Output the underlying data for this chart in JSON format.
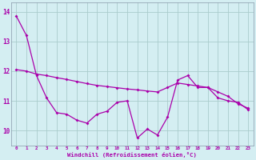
{
  "xlabel": "Windchill (Refroidissement éolien,°C)",
  "background_color": "#d4eef2",
  "grid_color": "#aacccc",
  "line_color": "#aa00aa",
  "spine_color": "#8899aa",
  "xlim": [
    -0.5,
    23.5
  ],
  "ylim": [
    9.5,
    14.3
  ],
  "yticks": [
    10,
    11,
    12,
    13,
    14
  ],
  "xticks": [
    0,
    1,
    2,
    3,
    4,
    5,
    6,
    7,
    8,
    9,
    10,
    11,
    12,
    13,
    14,
    15,
    16,
    17,
    18,
    19,
    20,
    21,
    22,
    23
  ],
  "series1_x": [
    0,
    1,
    2,
    3,
    4,
    5,
    6,
    7,
    8,
    9,
    10,
    11,
    12,
    13,
    14,
    15,
    16,
    17,
    18,
    19,
    20,
    21,
    22,
    23
  ],
  "series1_y": [
    13.85,
    13.2,
    11.85,
    11.1,
    10.6,
    10.55,
    10.35,
    10.25,
    10.55,
    10.65,
    10.95,
    11.0,
    9.75,
    10.05,
    9.85,
    10.45,
    11.7,
    11.85,
    11.45,
    11.45,
    11.1,
    11.0,
    10.95,
    10.7
  ],
  "series2_x": [
    0,
    1,
    2,
    3,
    4,
    5,
    6,
    7,
    8,
    9,
    10,
    11,
    12,
    13,
    14,
    15,
    16,
    17,
    18,
    19,
    20,
    21,
    22,
    23
  ],
  "series2_y": [
    12.05,
    12.0,
    11.9,
    11.85,
    11.78,
    11.72,
    11.65,
    11.58,
    11.52,
    11.48,
    11.44,
    11.4,
    11.37,
    11.33,
    11.3,
    11.45,
    11.6,
    11.55,
    11.5,
    11.45,
    11.3,
    11.15,
    10.9,
    10.75
  ]
}
